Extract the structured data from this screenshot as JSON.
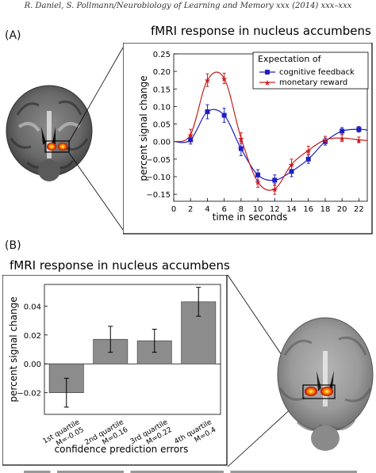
{
  "page": {
    "running_header": "R. Daniel, S. Pollmann/Neurobiology of Learning and Memory xxx (2014) xxx–xxx"
  },
  "panel_a": {
    "label": "(A)",
    "title": "fMRI response in nucleus accumbens"
  },
  "panel_b": {
    "label": "(B)",
    "title": "fMRI response in nucleus accumbens"
  },
  "chart_data": [
    {
      "type": "line",
      "xlabel": "time in seconds",
      "ylabel": "percent signal change",
      "xlim": [
        0,
        23
      ],
      "ylim": [
        -0.17,
        0.25
      ],
      "xticks": [
        "0",
        "2",
        "4",
        "6",
        "8",
        "10",
        "12",
        "14",
        "16",
        "18",
        "20",
        "22"
      ],
      "yticks": [
        "0.25",
        "0.20",
        "0.15",
        "0.10",
        "0.05",
        "0.00",
        "−0.05",
        "−0.10",
        "−0.15"
      ],
      "legend_title": "Expectation of",
      "legend_position": "top-right",
      "grid": false,
      "x": [
        2,
        4,
        6,
        8,
        10,
        12,
        14,
        16,
        18,
        20,
        22
      ],
      "series": [
        {
          "name": "cognitive feedback",
          "color": "#1f1fbf",
          "marker": "square",
          "values": [
            0.005,
            0.085,
            0.075,
            -0.02,
            -0.095,
            -0.11,
            -0.085,
            -0.05,
            0.0,
            0.03,
            0.035
          ],
          "errors": [
            0.012,
            0.02,
            0.02,
            0.02,
            0.015,
            0.015,
            0.015,
            0.012,
            0.01,
            0.01,
            0.008
          ]
        },
        {
          "name": "monetary reward",
          "color": "#c81e1e",
          "marker": "star",
          "values": [
            0.02,
            0.175,
            0.18,
            0.01,
            -0.115,
            -0.135,
            -0.065,
            -0.025,
            0.005,
            0.01,
            0.005
          ],
          "errors": [
            0.015,
            0.018,
            0.015,
            0.015,
            0.015,
            0.015,
            0.015,
            0.012,
            0.01,
            0.01,
            0.008
          ]
        }
      ]
    },
    {
      "type": "bar",
      "xlabel": "confidence prediction errors",
      "ylabel": "percent signal change",
      "ylim": [
        -0.035,
        0.055
      ],
      "yticks": [
        "0.04",
        "0.02",
        "0.00",
        "−0.02"
      ],
      "grid": false,
      "categories": [
        [
          "1st quartile",
          "M=-0.05"
        ],
        [
          "2nd quartile",
          "M=0.16"
        ],
        [
          "3rd quartile",
          "M=0.22"
        ],
        [
          "4th quartile",
          "M=0.4"
        ]
      ],
      "values": [
        -0.02,
        0.017,
        0.016,
        0.043
      ],
      "errors": [
        0.01,
        0.009,
        0.008,
        0.01
      ],
      "bar_color": "#8c8c8c"
    }
  ]
}
